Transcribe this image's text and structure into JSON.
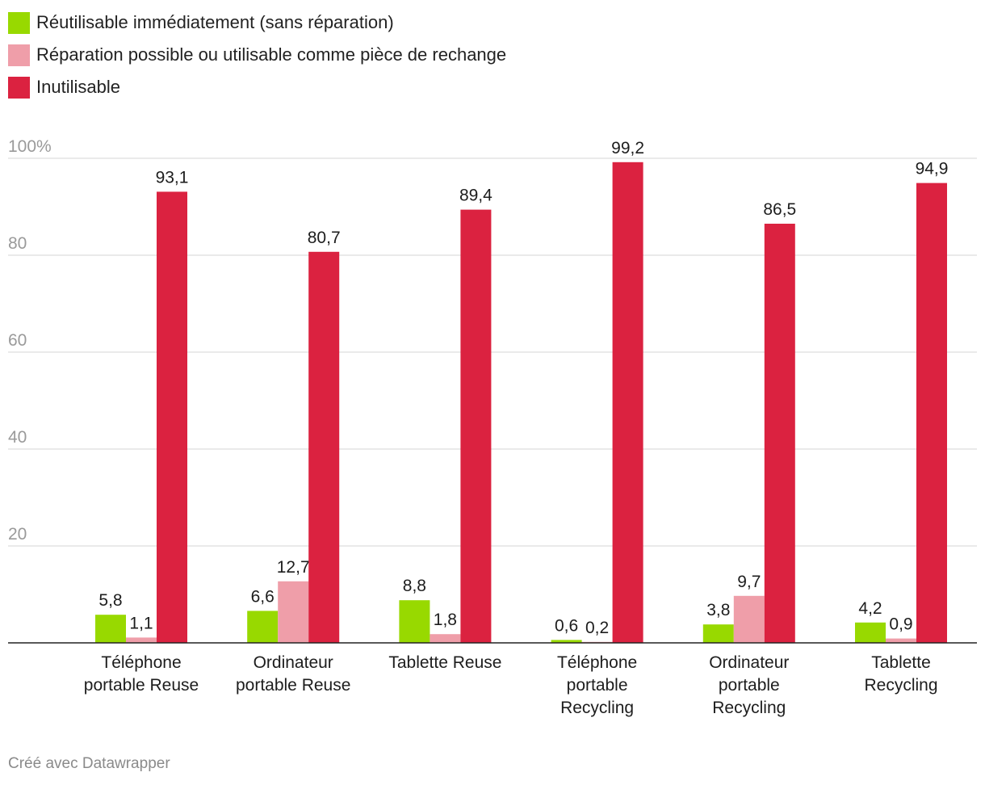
{
  "chart_data": {
    "type": "bar",
    "categories": [
      [
        "Téléphone",
        "portable Reuse"
      ],
      [
        "Ordinateur",
        "portable Reuse"
      ],
      [
        "Tablette Reuse"
      ],
      [
        "Téléphone",
        "portable",
        "Recycling"
      ],
      [
        "Ordinateur",
        "portable",
        "Recycling"
      ],
      [
        "Tablette",
        "Recycling"
      ]
    ],
    "series": [
      {
        "name": "Réutilisable immédiatement (sans réparation)",
        "color": "#98d900",
        "values": [
          5.8,
          6.6,
          8.8,
          0.6,
          3.8,
          4.2
        ],
        "labels": [
          "5,8",
          "6,6",
          "8,8",
          "0,6",
          "3,8",
          "4,2"
        ]
      },
      {
        "name": "Réparation possible ou utilisable comme pièce de rechange",
        "color": "#ef9ea9",
        "values": [
          1.1,
          12.7,
          1.8,
          0.2,
          9.7,
          0.9
        ],
        "labels": [
          "1,1",
          "12,7",
          "1,8",
          "0,2",
          "9,7",
          "0,9"
        ]
      },
      {
        "name": "Inutilisable",
        "color": "#db2240",
        "values": [
          93.1,
          80.7,
          89.4,
          99.2,
          86.5,
          94.9
        ],
        "labels": [
          "93,1",
          "80,7",
          "89,4",
          "99,2",
          "86,5",
          "94,9"
        ]
      }
    ],
    "yticks": [
      20,
      40,
      60,
      80,
      100
    ],
    "ytick_labels": [
      "20",
      "40",
      "60",
      "80",
      "100%"
    ],
    "ylim": [
      0,
      100
    ],
    "grid": true,
    "legend_position": "top-left",
    "title": "",
    "xlabel": "",
    "ylabel": ""
  },
  "footer": {
    "credit": "Créé avec Datawrapper"
  }
}
